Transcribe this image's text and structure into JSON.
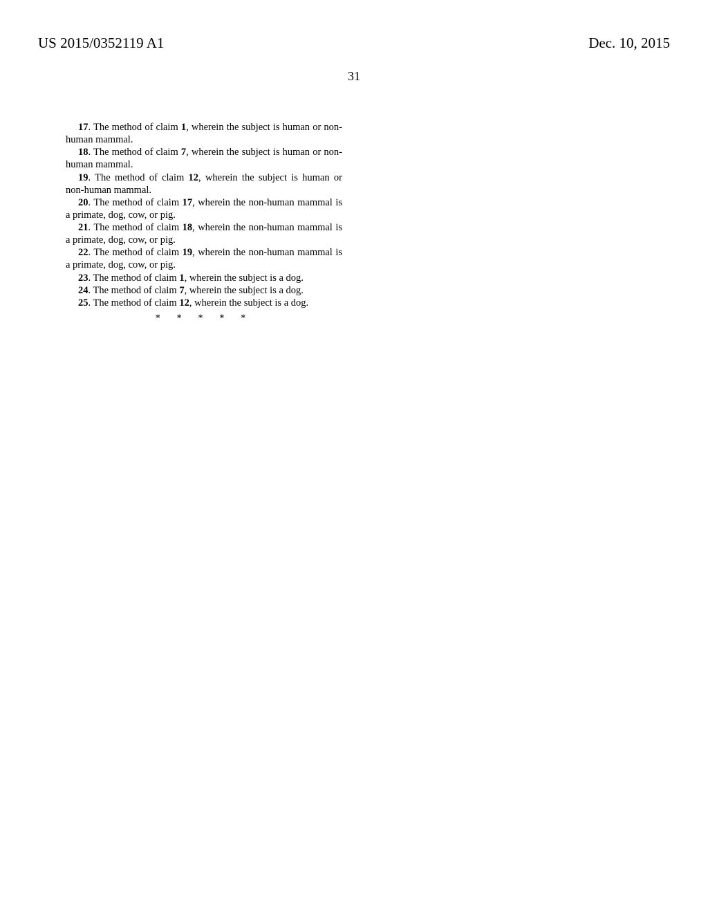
{
  "header": {
    "pub_number": "US 2015/0352119 A1",
    "pub_date": "Dec. 10, 2015"
  },
  "page_number": "31",
  "claims": [
    {
      "num": "17",
      "ref": "1",
      "text_before": ". The method of claim ",
      "text_after": ", wherein the subject is human or non-human mammal."
    },
    {
      "num": "18",
      "ref": "7",
      "text_before": ". The method of claim ",
      "text_after": ", wherein the subject is human or non-human mammal."
    },
    {
      "num": "19",
      "ref": "12",
      "text_before": ". The method of claim ",
      "text_after": ", wherein the subject is human or non-human mammal."
    },
    {
      "num": "20",
      "ref": "17",
      "text_before": ". The method of claim ",
      "text_after": ", wherein the non-human mammal is a primate, dog, cow, or pig."
    },
    {
      "num": "21",
      "ref": "18",
      "text_before": ". The method of claim ",
      "text_after": ", wherein the non-human mammal is a primate, dog, cow, or pig."
    },
    {
      "num": "22",
      "ref": "19",
      "text_before": ". The method of claim ",
      "text_after": ", wherein the non-human mammal is a primate, dog, cow, or pig."
    },
    {
      "num": "23",
      "ref": "1",
      "text_before": ". The method of claim ",
      "text_after": ", wherein the subject is a dog."
    },
    {
      "num": "24",
      "ref": "7",
      "text_before": ". The method of claim ",
      "text_after": ", wherein the subject is a dog."
    },
    {
      "num": "25",
      "ref": "12",
      "text_before": ". The method of claim ",
      "text_after": ", wherein the subject is a dog."
    }
  ],
  "terminator": "* * * * *"
}
